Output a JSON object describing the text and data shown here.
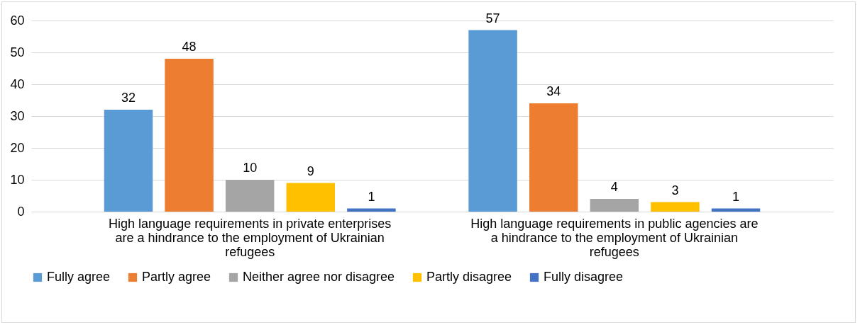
{
  "chart_data": {
    "type": "bar",
    "categories": [
      "High language requirements in private enterprises are a hindrance to the employment of Ukrainian refugees",
      "High language requirements in public agencies are a hindrance to the employment of Ukrainian refugees"
    ],
    "series": [
      {
        "name": "Fully agree",
        "color": "#5b9bd5",
        "values": [
          32,
          57
        ]
      },
      {
        "name": "Partly agree",
        "color": "#ed7d31",
        "values": [
          48,
          34
        ]
      },
      {
        "name": "Neither agree nor disagree",
        "color": "#a5a5a5",
        "values": [
          10,
          4
        ]
      },
      {
        "name": "Partly disagree",
        "color": "#ffc000",
        "values": [
          9,
          3
        ]
      },
      {
        "name": "Fully disagree",
        "color": "#4472c4",
        "values": [
          1,
          1
        ]
      }
    ],
    "ylim": [
      0,
      60
    ],
    "yticks": [
      0,
      10,
      20,
      30,
      40,
      50,
      60
    ],
    "grid": "y",
    "legend": "bottom",
    "data_labels": true
  }
}
